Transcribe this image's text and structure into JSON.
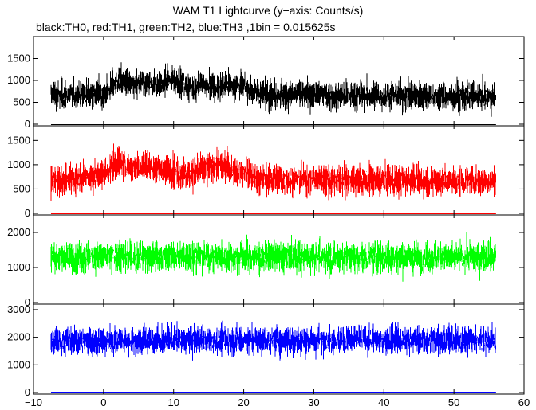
{
  "chart_data": {
    "type": "line",
    "title": "WAM T1 Lightcurve (y−axis: Counts/s)",
    "subtitle": "black:TH0, red:TH1, green:TH2, blue:TH3 ,1bin = 0.015625s",
    "xlim": [
      -10,
      60
    ],
    "x_ticks": [
      "−10",
      "0",
      "10",
      "20",
      "30",
      "40",
      "50",
      "60"
    ],
    "x_tick_values": [
      -10,
      0,
      10,
      20,
      30,
      40,
      50,
      60
    ],
    "x_data_range": [
      -7.5,
      56
    ],
    "grid": false,
    "panels": [
      {
        "series_name": "TH0",
        "color": "#000000",
        "ylim": [
          0,
          2000
        ],
        "y_ticks": [
          "0",
          "500",
          "1000",
          "1500"
        ],
        "y_tick_values": [
          0,
          500,
          1000,
          1500
        ],
        "profile": [
          [
            -7.5,
            650
          ],
          [
            0,
            700
          ],
          [
            2,
            1000
          ],
          [
            4,
            880
          ],
          [
            6,
            950
          ],
          [
            8,
            900
          ],
          [
            10,
            1050
          ],
          [
            12,
            830
          ],
          [
            14,
            920
          ],
          [
            16,
            820
          ],
          [
            18,
            900
          ],
          [
            20,
            860
          ],
          [
            22,
            700
          ],
          [
            30,
            680
          ],
          [
            40,
            650
          ],
          [
            50,
            640
          ],
          [
            56,
            620
          ]
        ],
        "scatter": 220
      },
      {
        "series_name": "TH1",
        "color": "#ff0000",
        "ylim": [
          0,
          1800
        ],
        "y_ticks": [
          "0",
          "500",
          "1000",
          "1500"
        ],
        "y_tick_values": [
          0,
          500,
          1000,
          1500
        ],
        "profile": [
          [
            -7.5,
            650
          ],
          [
            0,
            800
          ],
          [
            2,
            1050
          ],
          [
            4,
            950
          ],
          [
            6,
            980
          ],
          [
            8,
            900
          ],
          [
            10,
            880
          ],
          [
            12,
            800
          ],
          [
            14,
            900
          ],
          [
            16,
            1000
          ],
          [
            18,
            920
          ],
          [
            20,
            850
          ],
          [
            22,
            700
          ],
          [
            30,
            700
          ],
          [
            40,
            680
          ],
          [
            50,
            670
          ],
          [
            56,
            680
          ]
        ],
        "scatter": 210
      },
      {
        "series_name": "TH2",
        "color": "#00ff00",
        "ylim": [
          0,
          2500
        ],
        "y_ticks": [
          "0",
          "1000",
          "2000"
        ],
        "y_tick_values": [
          0,
          1000,
          2000
        ],
        "profile": [
          [
            -7.5,
            1300
          ],
          [
            10,
            1320
          ],
          [
            20,
            1310
          ],
          [
            30,
            1300
          ],
          [
            40,
            1300
          ],
          [
            50,
            1300
          ],
          [
            56,
            1300
          ]
        ],
        "scatter": 300
      },
      {
        "series_name": "TH3",
        "color": "#0000ff",
        "ylim": [
          0,
          3200
        ],
        "y_ticks": [
          "0",
          "1000",
          "2000",
          "3000"
        ],
        "y_tick_values": [
          0,
          1000,
          2000,
          3000
        ],
        "profile": [
          [
            -7.5,
            1850
          ],
          [
            10,
            1900
          ],
          [
            20,
            1900
          ],
          [
            30,
            1900
          ],
          [
            40,
            1900
          ],
          [
            50,
            1900
          ],
          [
            56,
            1900
          ]
        ],
        "scatter": 350
      }
    ]
  }
}
